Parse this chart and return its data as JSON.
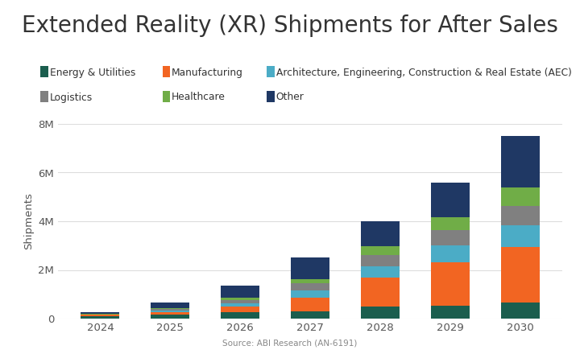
{
  "title": "Extended Reality (XR) Shipments for After Sales",
  "source": "Source: ABI Research (AN-6191)",
  "ylabel": "Shipments",
  "years": [
    2024,
    2025,
    2026,
    2027,
    2028,
    2029,
    2030
  ],
  "categories": [
    "Energy & Utilities",
    "Manufacturing",
    "Architecture, Engineering, Construction & Real Estate (AEC)",
    "Logistics",
    "Healthcare",
    "Other"
  ],
  "legend_row1": [
    "Energy & Utilities",
    "Manufacturing",
    "Architecture, Engineering, Construction & Real Estate (AEC)"
  ],
  "legend_row2": [
    "Logistics",
    "Healthcare",
    "Other"
  ],
  "colors": [
    "#1b5e4e",
    "#f26522",
    "#4bacc6",
    "#808080",
    "#70ad47",
    "#1f3864"
  ],
  "data": {
    "Energy & Utilities": [
      100000,
      150000,
      280000,
      300000,
      480000,
      520000,
      650000
    ],
    "Manufacturing": [
      50000,
      120000,
      220000,
      550000,
      1200000,
      1800000,
      2300000
    ],
    "Architecture, Engineering, Construction & Real Estate (AEC)": [
      15000,
      70000,
      140000,
      320000,
      480000,
      680000,
      870000
    ],
    "Logistics": [
      10000,
      55000,
      120000,
      270000,
      450000,
      620000,
      820000
    ],
    "Healthcare": [
      8000,
      45000,
      110000,
      180000,
      370000,
      550000,
      760000
    ],
    "Other": [
      80000,
      230000,
      480000,
      880000,
      1020000,
      1430000,
      2100000
    ]
  },
  "ylim": [
    0,
    8000000
  ],
  "yticks": [
    0,
    2000000,
    4000000,
    6000000,
    8000000
  ],
  "ytick_labels": [
    "0",
    "2M",
    "4M",
    "6M",
    "8M"
  ],
  "background_color": "#ffffff",
  "grid_color": "#dddddd",
  "title_fontsize": 20,
  "label_fontsize": 9.5,
  "legend_fontsize": 8.8
}
